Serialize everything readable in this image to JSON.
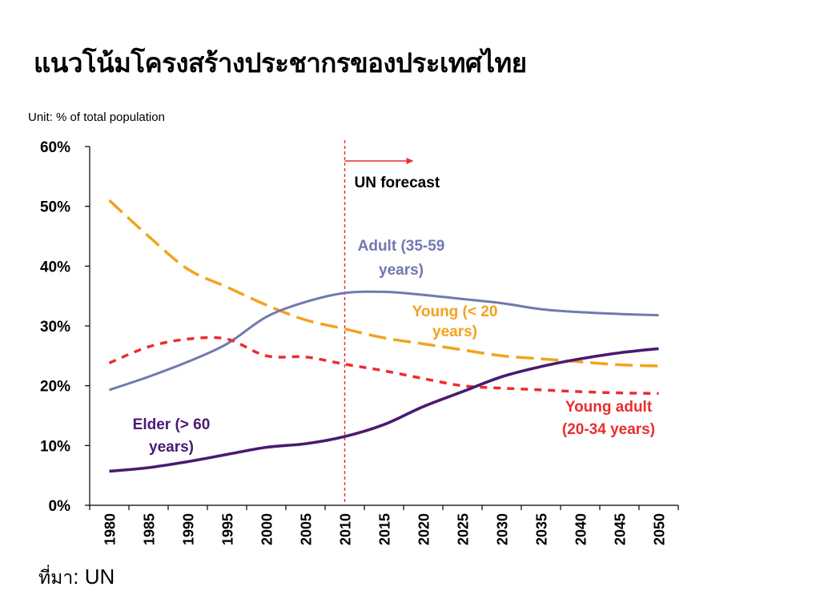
{
  "slide": {
    "title": "แนวโน้มโครงสร้างประชากรของประเทศไทย",
    "unit_label": "Unit: % of total population",
    "source_label": "ที่มา",
    "source_value": ": UN"
  },
  "chart_data": {
    "type": "line",
    "title": "",
    "xlabel": "",
    "ylabel": "",
    "x": [
      1980,
      1985,
      1990,
      1995,
      2000,
      2005,
      2010,
      2015,
      2020,
      2025,
      2030,
      2035,
      2040,
      2045,
      2050
    ],
    "ylim": [
      0,
      60
    ],
    "yticks": [
      "0%",
      "10%",
      "20%",
      "30%",
      "40%",
      "50%",
      "60%"
    ],
    "grid": false,
    "forecast_start": 2010,
    "forecast_label": "UN forecast",
    "series": [
      {
        "name": "Young (< 20 years)",
        "label_lines": [
          "Young (< 20",
          "years)"
        ],
        "color": "#F4A21C",
        "style": "long-dash",
        "values": [
          51,
          45,
          39.5,
          36.5,
          33.5,
          31,
          29.5,
          28,
          27,
          26,
          25,
          24.5,
          24,
          23.5,
          23.3
        ]
      },
      {
        "name": "Adult (35-59 years)",
        "label_lines": [
          "Adult (35-59",
          "years)"
        ],
        "color": "#7279AE",
        "style": "solid",
        "values": [
          19.3,
          21.5,
          24,
          27,
          31.5,
          34,
          35.5,
          35.7,
          35.2,
          34.5,
          33.8,
          32.8,
          32.3,
          32,
          31.8
        ]
      },
      {
        "name": "Young adult (20-34 years)",
        "label_lines": [
          "Young adult",
          "(20-34 years)"
        ],
        "color": "#E82E2E",
        "style": "short-dash",
        "values": [
          23.8,
          26.5,
          27.8,
          27.8,
          25,
          24.8,
          23.6,
          22.5,
          21.2,
          20,
          19.6,
          19.3,
          19,
          18.8,
          18.7
        ]
      },
      {
        "name": "Elder (> 60 years)",
        "label_lines": [
          "Elder (> 60",
          "years)"
        ],
        "color": "#4A1A72",
        "style": "solid",
        "values": [
          5.7,
          6.3,
          7.3,
          8.5,
          9.7,
          10.3,
          11.5,
          13.5,
          16.5,
          19,
          21.5,
          23.2,
          24.5,
          25.5,
          26.2
        ]
      }
    ]
  }
}
